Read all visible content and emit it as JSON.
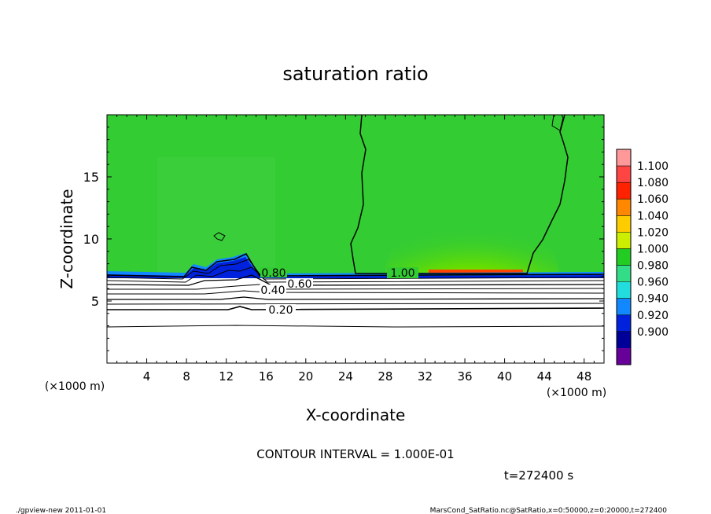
{
  "chart_data": {
    "type": "heatmap",
    "title": "saturation ratio",
    "xlabel": "X-coordinate",
    "ylabel": "Z-coordinate",
    "x_unit_left": "(×1000 m)",
    "x_unit_right": "(×1000 m)",
    "xlim": [
      0,
      50
    ],
    "ylim": [
      0,
      20
    ],
    "x_ticks": [
      4,
      8,
      12,
      16,
      20,
      24,
      28,
      32,
      36,
      40,
      44,
      48
    ],
    "y_ticks": [
      5,
      10,
      15
    ],
    "colorbar": {
      "levels": [
        "1.100",
        "1.080",
        "1.060",
        "1.040",
        "1.020",
        "1.000",
        "0.980",
        "0.960",
        "0.940",
        "0.920",
        "0.900"
      ],
      "colors": [
        "#ff9999",
        "#ff4444",
        "#ff2200",
        "#ff8800",
        "#ffcc00",
        "#ccee00",
        "#22cc22",
        "#33dd88",
        "#22dddd",
        "#1188ff",
        "#0022dd",
        "#000099",
        "#660099"
      ]
    },
    "contour_labels": [
      "1.00",
      "0.80",
      "0.60",
      "0.40",
      "0.20"
    ],
    "contour_interval": "CONTOUR INTERVAL = 1.000E-01",
    "time": "t=272400 s"
  },
  "footer": {
    "left": "./gpview-new  2011-01-01",
    "right": "MarsCond_SatRatio.nc@SatRatio,x=0:50000,z=0:20000,t=272400"
  }
}
